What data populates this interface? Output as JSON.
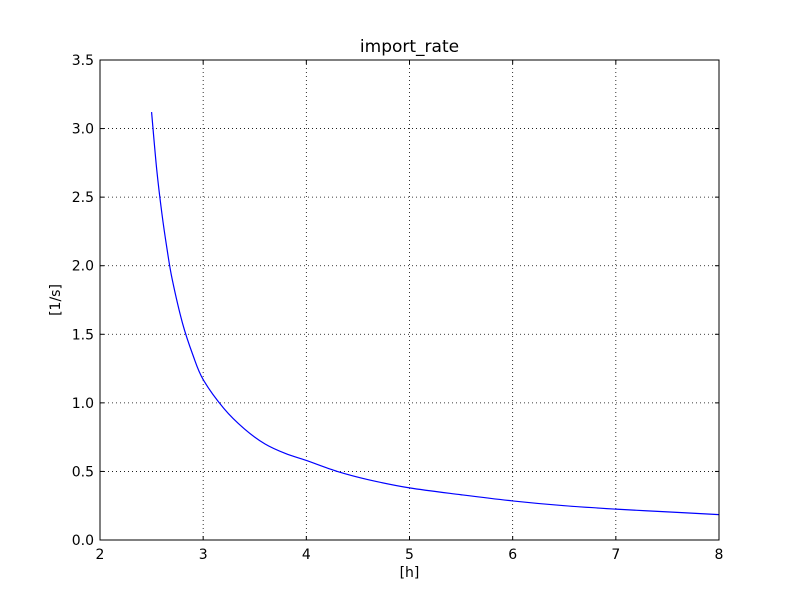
{
  "chart_data": {
    "type": "line",
    "title": "import_rate",
    "xlabel": "[h]",
    "ylabel": "[1/s]",
    "xlim": [
      2,
      8
    ],
    "ylim": [
      0,
      3.5
    ],
    "xticks": [
      2,
      3,
      4,
      5,
      6,
      7,
      8
    ],
    "xtick_labels": [
      "2",
      "3",
      "4",
      "5",
      "6",
      "7",
      "8"
    ],
    "yticks": [
      0,
      0.5,
      1.0,
      1.5,
      2.0,
      2.5,
      3.0,
      3.5
    ],
    "ytick_labels": [
      "0.0",
      "0.5",
      "1.0",
      "1.5",
      "2.0",
      "2.5",
      "3.0",
      "3.5"
    ],
    "grid": true,
    "series": [
      {
        "color": "#0000ff",
        "x": [
          2.5,
          2.55,
          2.6,
          2.65,
          2.7,
          2.8,
          2.9,
          3.0,
          3.2,
          3.4,
          3.6,
          3.8,
          4.0,
          4.3,
          4.6,
          5.0,
          5.5,
          6.0,
          6.5,
          7.0,
          7.5,
          8.0
        ],
        "y": [
          3.12,
          2.7,
          2.38,
          2.12,
          1.9,
          1.58,
          1.35,
          1.17,
          0.96,
          0.81,
          0.7,
          0.63,
          0.58,
          0.5,
          0.44,
          0.38,
          0.33,
          0.285,
          0.25,
          0.225,
          0.205,
          0.185
        ]
      }
    ]
  }
}
